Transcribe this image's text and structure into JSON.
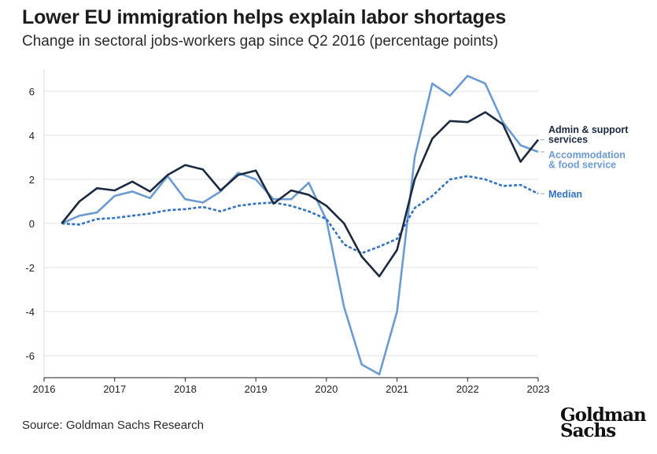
{
  "header": {
    "title": "Lower EU immigration helps explain labor shortages",
    "subtitle": "Change in sectoral jobs-workers gap since Q2 2016 (percentage points)"
  },
  "footer": {
    "source": "Source: Goldman Sachs Research",
    "logo_line1": "Goldman",
    "logo_line2": "Sachs"
  },
  "chart_data": {
    "type": "line",
    "title": "Lower EU immigration helps explain labor shortages",
    "subtitle": "Change in sectoral jobs-workers gap since Q2 2016 (percentage points)",
    "xlim": [
      2016,
      2023
    ],
    "ylim": [
      -7,
      7
    ],
    "x_ticks": [
      2016,
      2017,
      2018,
      2019,
      2020,
      2021,
      2022,
      2023
    ],
    "x_tick_labels": [
      "2016",
      "2017",
      "2018",
      "2019",
      "2020",
      "2021",
      "2022",
      "2023"
    ],
    "y_ticks": [
      6,
      4,
      2,
      0,
      -2,
      -4,
      -6
    ],
    "y_tick_labels": [
      "6",
      "4",
      "2",
      "0",
      "-2",
      "-4",
      "-6"
    ],
    "grid": "horizontal",
    "legend": "right-end labels",
    "x": [
      2016.25,
      2016.5,
      2016.75,
      2017.0,
      2017.25,
      2017.5,
      2017.75,
      2018.0,
      2018.25,
      2018.5,
      2018.75,
      2019.0,
      2019.25,
      2019.5,
      2019.75,
      2020.0,
      2020.25,
      2020.5,
      2020.75,
      2021.0,
      2021.25,
      2021.5,
      2021.75,
      2022.0,
      2022.25,
      2022.5,
      2022.75,
      2023.0
    ],
    "series": [
      {
        "name": "Admin & support services",
        "color": "#1b2a41",
        "style": "solid",
        "values": [
          0.0,
          1.0,
          1.6,
          1.5,
          1.9,
          1.45,
          2.2,
          2.65,
          2.45,
          1.5,
          2.2,
          2.4,
          0.9,
          1.5,
          1.3,
          0.8,
          0.0,
          -1.5,
          -2.4,
          -1.2,
          2.0,
          3.85,
          4.65,
          4.6,
          5.05,
          4.5,
          2.8,
          3.8
        ]
      },
      {
        "name": "Accommodation & food service",
        "color": "#6b9bd1",
        "style": "solid",
        "values": [
          0.0,
          0.35,
          0.5,
          1.25,
          1.45,
          1.15,
          2.15,
          1.1,
          0.95,
          1.45,
          2.3,
          2.0,
          1.1,
          1.1,
          1.85,
          0.15,
          -3.8,
          -6.4,
          -6.85,
          -4.0,
          3.0,
          6.35,
          5.8,
          6.7,
          6.35,
          4.6,
          3.55,
          3.25
        ]
      },
      {
        "name": "Median",
        "color": "#3173c2",
        "style": "dashed",
        "values": [
          0.0,
          -0.05,
          0.2,
          0.25,
          0.35,
          0.45,
          0.6,
          0.65,
          0.75,
          0.55,
          0.8,
          0.9,
          0.95,
          0.8,
          0.55,
          0.2,
          -0.95,
          -1.35,
          -1.05,
          -0.7,
          0.7,
          1.25,
          2.0,
          2.15,
          2.0,
          1.7,
          1.75,
          1.35
        ]
      }
    ],
    "series_labels": [
      {
        "text": [
          "Admin & support",
          "services"
        ],
        "color": "#1b2a41"
      },
      {
        "text": [
          "Accommodation",
          "& food service"
        ],
        "color": "#6b9bd1"
      },
      {
        "text": [
          "Median"
        ],
        "color": "#3173c2"
      }
    ]
  }
}
